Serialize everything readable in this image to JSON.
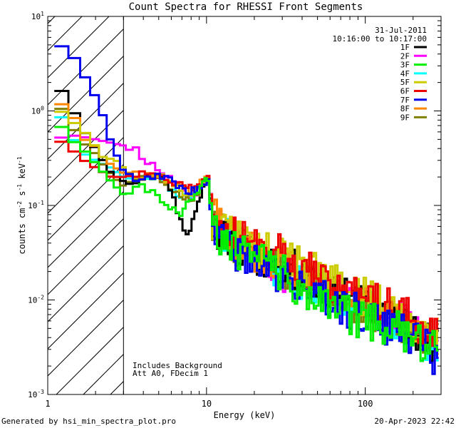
{
  "chart_data": {
    "type": "line",
    "title": "Count Spectra for RHESSI Front Segments",
    "xlabel": "Energy (keV)",
    "ylabel_parts": {
      "a": "counts cm",
      "sup1": "-2",
      "b": " s",
      "sup2": "-1",
      "c": " keV",
      "sup3": "-1"
    },
    "xscale": "log",
    "yscale": "log",
    "xlim": [
      1,
      300
    ],
    "ylim": [
      0.001,
      10
    ],
    "x_ticks": [
      {
        "v": 1,
        "label": "1"
      },
      {
        "v": 10,
        "label": "10"
      },
      {
        "v": 100,
        "label": "100"
      }
    ],
    "y_ticks": [
      {
        "v": 10,
        "base": "10",
        "exp": "1"
      },
      {
        "v": 1,
        "base": "10",
        "exp": "0"
      },
      {
        "v": 0.1,
        "base": "10",
        "exp": "-1"
      },
      {
        "v": 0.01,
        "base": "10",
        "exp": "-2"
      },
      {
        "v": 0.001,
        "base": "10",
        "exp": "-3"
      }
    ],
    "shaded_region": {
      "x_from": 1,
      "x_to": 3,
      "style": "diagonal hatch"
    },
    "date": "31-Jul-2011",
    "time_range": "10:16:00 to 10:17:00",
    "annotations": [
      "Includes Background",
      "Att A0, FDecim 1"
    ],
    "legend_position": "top-right",
    "series": [
      {
        "name": "1F",
        "color": "#000000",
        "seed": 1,
        "anchors": [
          [
            1.2,
            1.7
          ],
          [
            1.4,
            1.1
          ],
          [
            1.7,
            0.6
          ],
          [
            2.0,
            0.4
          ],
          [
            2.5,
            0.22
          ],
          [
            3.0,
            0.18
          ],
          [
            4.0,
            0.19
          ],
          [
            5.0,
            0.2
          ],
          [
            6.0,
            0.15
          ],
          [
            7.0,
            0.06
          ],
          [
            7.6,
            0.05
          ],
          [
            8.5,
            0.08
          ],
          [
            9.5,
            0.15
          ],
          [
            10.2,
            0.18
          ],
          [
            11.2,
            0.06
          ],
          [
            15,
            0.04
          ],
          [
            20,
            0.03
          ],
          [
            30,
            0.025
          ],
          [
            50,
            0.015
          ],
          [
            80,
            0.011
          ],
          [
            100,
            0.009
          ],
          [
            150,
            0.007
          ],
          [
            200,
            0.005
          ],
          [
            280,
            0.003
          ]
        ]
      },
      {
        "name": "2F",
        "color": "#ff00ff",
        "seed": 2,
        "anchors": [
          [
            1.2,
            0.52
          ],
          [
            1.5,
            0.55
          ],
          [
            2.0,
            0.5
          ],
          [
            2.5,
            0.46
          ],
          [
            3.0,
            0.43
          ],
          [
            3.5,
            0.4
          ],
          [
            4.0,
            0.32
          ],
          [
            5.0,
            0.25
          ],
          [
            7.0,
            0.15
          ],
          [
            8.0,
            0.12
          ],
          [
            9.0,
            0.15
          ],
          [
            10.2,
            0.22
          ],
          [
            11,
            0.08
          ],
          [
            13,
            0.05
          ],
          [
            20,
            0.035
          ],
          [
            30,
            0.02
          ],
          [
            50,
            0.014
          ],
          [
            100,
            0.009
          ],
          [
            150,
            0.007
          ],
          [
            200,
            0.005
          ],
          [
            280,
            0.003
          ]
        ]
      },
      {
        "name": "3F",
        "color": "#00ee00",
        "seed": 3,
        "anchors": [
          [
            1.2,
            0.7
          ],
          [
            1.4,
            0.5
          ],
          [
            1.7,
            0.38
          ],
          [
            2.0,
            0.28
          ],
          [
            2.5,
            0.18
          ],
          [
            3.0,
            0.13
          ],
          [
            3.5,
            0.15
          ],
          [
            4.0,
            0.16
          ],
          [
            5.0,
            0.12
          ],
          [
            6.0,
            0.09
          ],
          [
            7.0,
            0.08
          ],
          [
            8.0,
            0.12
          ],
          [
            9.0,
            0.14
          ],
          [
            10.2,
            0.2
          ],
          [
            11,
            0.06
          ],
          [
            13,
            0.04
          ],
          [
            20,
            0.028
          ],
          [
            30,
            0.02
          ],
          [
            40,
            0.012
          ],
          [
            60,
            0.01
          ],
          [
            80,
            0.007
          ],
          [
            100,
            0.006
          ],
          [
            150,
            0.005
          ],
          [
            200,
            0.004
          ],
          [
            280,
            0.003
          ]
        ]
      },
      {
        "name": "4F",
        "color": "#00ffff",
        "seed": 4,
        "anchors": [
          [
            1.2,
            0.9
          ],
          [
            1.4,
            0.55
          ],
          [
            1.7,
            0.35
          ],
          [
            2.0,
            0.3
          ],
          [
            2.5,
            0.25
          ],
          [
            3.0,
            0.2
          ],
          [
            4.0,
            0.2
          ],
          [
            5.0,
            0.2
          ],
          [
            7.0,
            0.12
          ],
          [
            8.0,
            0.12
          ],
          [
            10.2,
            0.18
          ],
          [
            11,
            0.06
          ],
          [
            15,
            0.04
          ],
          [
            20,
            0.03
          ],
          [
            30,
            0.02
          ],
          [
            50,
            0.014
          ],
          [
            100,
            0.008
          ],
          [
            150,
            0.006
          ],
          [
            200,
            0.004
          ],
          [
            280,
            0.003
          ]
        ]
      },
      {
        "name": "5F",
        "color": "#cccc00",
        "seed": 5,
        "anchors": [
          [
            1.2,
            1.0
          ],
          [
            1.4,
            0.8
          ],
          [
            1.7,
            0.6
          ],
          [
            2.0,
            0.42
          ],
          [
            2.3,
            0.3
          ],
          [
            2.6,
            0.32
          ],
          [
            3.0,
            0.25
          ],
          [
            3.5,
            0.2
          ],
          [
            4.0,
            0.2
          ],
          [
            5.0,
            0.22
          ],
          [
            7.0,
            0.14
          ],
          [
            8.0,
            0.12
          ],
          [
            10.2,
            0.2
          ],
          [
            11,
            0.07
          ],
          [
            15,
            0.045
          ],
          [
            20,
            0.035
          ],
          [
            30,
            0.03
          ],
          [
            50,
            0.02
          ],
          [
            80,
            0.012
          ],
          [
            100,
            0.011
          ],
          [
            150,
            0.008
          ],
          [
            200,
            0.005
          ],
          [
            280,
            0.004
          ]
        ]
      },
      {
        "name": "6F",
        "color": "#ee0000",
        "seed": 6,
        "anchors": [
          [
            1.2,
            0.48
          ],
          [
            1.4,
            0.4
          ],
          [
            1.7,
            0.3
          ],
          [
            2.0,
            0.25
          ],
          [
            2.5,
            0.2
          ],
          [
            3.0,
            0.2
          ],
          [
            4.0,
            0.22
          ],
          [
            5.0,
            0.2
          ],
          [
            6.0,
            0.18
          ],
          [
            7.0,
            0.17
          ],
          [
            8.0,
            0.15
          ],
          [
            9.0,
            0.16
          ],
          [
            10.2,
            0.2
          ],
          [
            11,
            0.1
          ],
          [
            13,
            0.05
          ],
          [
            20,
            0.04
          ],
          [
            30,
            0.03
          ],
          [
            50,
            0.018
          ],
          [
            80,
            0.012
          ],
          [
            100,
            0.01
          ],
          [
            150,
            0.008
          ],
          [
            200,
            0.006
          ],
          [
            280,
            0.004
          ]
        ]
      },
      {
        "name": "7F",
        "color": "#0000ee",
        "seed": 7,
        "anchors": [
          [
            1.2,
            4.9
          ],
          [
            1.4,
            4.2
          ],
          [
            1.6,
            2.8
          ],
          [
            1.9,
            1.7
          ],
          [
            2.2,
            0.95
          ],
          [
            2.5,
            0.47
          ],
          [
            3.0,
            0.23
          ],
          [
            3.5,
            0.2
          ],
          [
            4.0,
            0.19
          ],
          [
            5.0,
            0.22
          ],
          [
            6.0,
            0.18
          ],
          [
            7.0,
            0.15
          ],
          [
            8.0,
            0.14
          ],
          [
            10.2,
            0.18
          ],
          [
            11,
            0.06
          ],
          [
            15,
            0.03
          ],
          [
            20,
            0.025
          ],
          [
            30,
            0.018
          ],
          [
            50,
            0.012
          ],
          [
            80,
            0.008
          ],
          [
            100,
            0.007
          ],
          [
            150,
            0.005
          ],
          [
            200,
            0.004
          ],
          [
            280,
            0.0025
          ]
        ]
      },
      {
        "name": "8F",
        "color": "#ff8800",
        "seed": 8,
        "anchors": [
          [
            1.2,
            1.2
          ],
          [
            1.4,
            1.0
          ],
          [
            1.7,
            0.5
          ],
          [
            2.0,
            0.42
          ],
          [
            2.3,
            0.3
          ],
          [
            2.6,
            0.26
          ],
          [
            3.0,
            0.22
          ],
          [
            4.0,
            0.21
          ],
          [
            5.0,
            0.21
          ],
          [
            7.0,
            0.15
          ],
          [
            8.0,
            0.14
          ],
          [
            10.2,
            0.2
          ],
          [
            11,
            0.08
          ],
          [
            15,
            0.04
          ],
          [
            20,
            0.032
          ],
          [
            30,
            0.025
          ],
          [
            50,
            0.016
          ],
          [
            80,
            0.011
          ],
          [
            100,
            0.009
          ],
          [
            150,
            0.007
          ],
          [
            200,
            0.005
          ],
          [
            280,
            0.0035
          ]
        ]
      },
      {
        "name": "9F",
        "color": "#808000",
        "seed": 9,
        "anchors": [
          [
            1.2,
            1.1
          ],
          [
            1.4,
            0.7
          ],
          [
            1.7,
            0.45
          ],
          [
            2.0,
            0.35
          ],
          [
            2.3,
            0.25
          ],
          [
            2.6,
            0.2
          ],
          [
            3.0,
            0.16
          ],
          [
            3.5,
            0.18
          ],
          [
            4.0,
            0.2
          ],
          [
            5.0,
            0.19
          ],
          [
            7.0,
            0.13
          ],
          [
            8.0,
            0.11
          ],
          [
            10.2,
            0.19
          ],
          [
            11,
            0.07
          ],
          [
            15,
            0.038
          ],
          [
            20,
            0.03
          ],
          [
            30,
            0.022
          ],
          [
            50,
            0.015
          ],
          [
            80,
            0.01
          ],
          [
            100,
            0.008
          ],
          [
            150,
            0.006
          ],
          [
            200,
            0.005
          ],
          [
            280,
            0.0035
          ]
        ]
      }
    ]
  },
  "footer": {
    "generated_by": "Generated by hsi_min_spectra_plot.pro",
    "timestamp": "20-Apr-2023 22:42"
  }
}
